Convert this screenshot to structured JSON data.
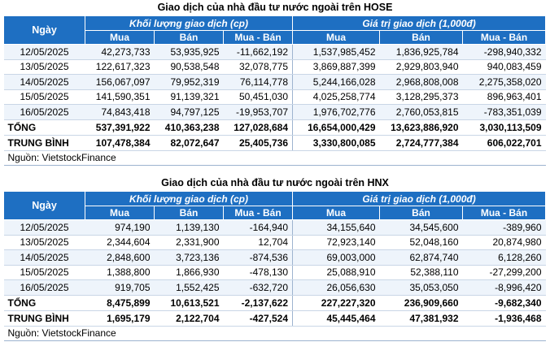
{
  "tables": [
    {
      "title": "Giao dịch của nhà đầu tư nước ngoài trên HOSE",
      "headers": {
        "date": "Ngày",
        "volume_group": "Khối lượng giao dịch (cp)",
        "value_group": "Giá trị giao dịch (1,000đ)",
        "buy": "Mua",
        "sell": "Bán",
        "net": "Mua - Bán"
      },
      "rows": [
        {
          "date": "12/05/2025",
          "vol_buy": "42,273,733",
          "vol_sell": "53,935,925",
          "vol_net": "-11,662,192",
          "val_buy": "1,537,985,452",
          "val_sell": "1,836,925,784",
          "val_net": "-298,940,332"
        },
        {
          "date": "13/05/2025",
          "vol_buy": "122,617,323",
          "vol_sell": "90,538,548",
          "vol_net": "32,078,775",
          "val_buy": "3,869,887,399",
          "val_sell": "2,929,803,940",
          "val_net": "940,083,459"
        },
        {
          "date": "14/05/2025",
          "vol_buy": "156,067,097",
          "vol_sell": "79,952,319",
          "vol_net": "76,114,778",
          "val_buy": "5,244,166,028",
          "val_sell": "2,968,808,008",
          "val_net": "2,275,358,020"
        },
        {
          "date": "15/05/2025",
          "vol_buy": "141,590,351",
          "vol_sell": "91,139,321",
          "vol_net": "50,451,030",
          "val_buy": "4,025,258,774",
          "val_sell": "3,128,295,373",
          "val_net": "896,963,401"
        },
        {
          "date": "16/05/2025",
          "vol_buy": "74,843,418",
          "vol_sell": "94,797,125",
          "vol_net": "-19,953,707",
          "val_buy": "1,976,702,776",
          "val_sell": "2,760,053,815",
          "val_net": "-783,351,039"
        }
      ],
      "total": {
        "label": "TỔNG",
        "vol_buy": "537,391,922",
        "vol_sell": "410,363,238",
        "vol_net": "127,028,684",
        "val_buy": "16,654,000,429",
        "val_sell": "13,623,886,920",
        "val_net": "3,030,113,509"
      },
      "average": {
        "label": "TRUNG BÌNH",
        "vol_buy": "107,478,384",
        "vol_sell": "82,072,647",
        "vol_net": "25,405,736",
        "val_buy": "3,330,800,085",
        "val_sell": "2,724,777,384",
        "val_net": "606,022,701"
      },
      "source": "Nguồn: VietstockFinance"
    },
    {
      "title": "Giao dịch của nhà đầu tư nước ngoài trên HNX",
      "headers": {
        "date": "Ngày",
        "volume_group": "Khối lượng giao dịch (cp)",
        "value_group": "Giá trị giao dịch (1,000đ)",
        "buy": "Mua",
        "sell": "Bán",
        "net": "Mua - Bán"
      },
      "rows": [
        {
          "date": "12/05/2025",
          "vol_buy": "974,190",
          "vol_sell": "1,139,130",
          "vol_net": "-164,940",
          "val_buy": "34,155,640",
          "val_sell": "34,545,600",
          "val_net": "-389,960"
        },
        {
          "date": "13/05/2025",
          "vol_buy": "2,344,604",
          "vol_sell": "2,331,900",
          "vol_net": "12,704",
          "val_buy": "72,923,140",
          "val_sell": "52,048,160",
          "val_net": "20,874,980"
        },
        {
          "date": "14/05/2025",
          "vol_buy": "2,848,600",
          "vol_sell": "3,723,136",
          "vol_net": "-874,536",
          "val_buy": "69,003,000",
          "val_sell": "62,874,740",
          "val_net": "6,128,260"
        },
        {
          "date": "15/05/2025",
          "vol_buy": "1,388,800",
          "vol_sell": "1,866,930",
          "vol_net": "-478,130",
          "val_buy": "25,088,910",
          "val_sell": "52,388,110",
          "val_net": "-27,299,200"
        },
        {
          "date": "16/05/2025",
          "vol_buy": "919,705",
          "vol_sell": "1,552,425",
          "vol_net": "-632,720",
          "val_buy": "26,056,630",
          "val_sell": "35,053,050",
          "val_net": "-8,996,420"
        }
      ],
      "total": {
        "label": "TỔNG",
        "vol_buy": "8,475,899",
        "vol_sell": "10,613,521",
        "vol_net": "-2,137,622",
        "val_buy": "227,227,320",
        "val_sell": "236,909,660",
        "val_net": "-9,682,340"
      },
      "average": {
        "label": "TRUNG BÌNH",
        "vol_buy": "1,695,179",
        "vol_sell": "2,122,704",
        "vol_net": "-427,524",
        "val_buy": "45,445,464",
        "val_sell": "47,381,932",
        "val_net": "-1,936,468"
      },
      "source": "Nguồn: VietstockFinance"
    }
  ],
  "colors": {
    "header_bg": "#1e6fc2",
    "positive": "#2e9a2e",
    "negative": "#e02020"
  }
}
